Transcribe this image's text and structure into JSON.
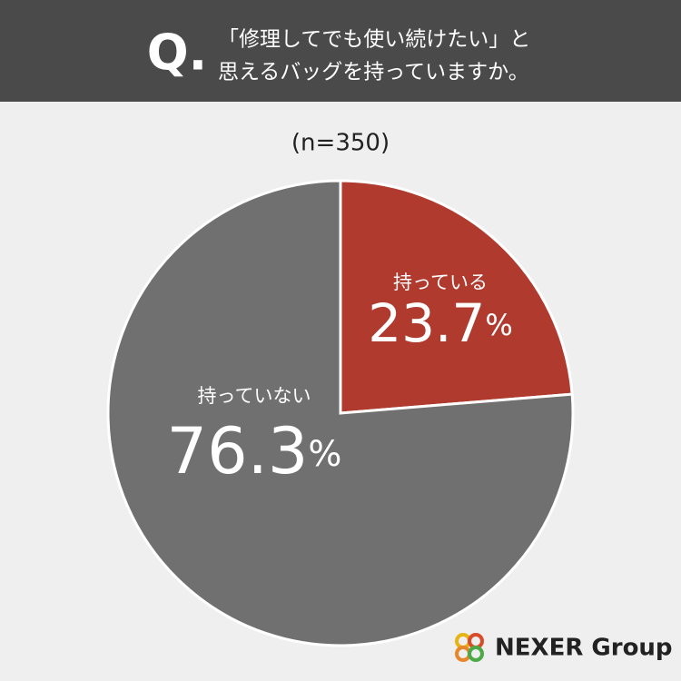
{
  "chart_data": {
    "type": "pie",
    "question_mark": "Q.",
    "title_lines": [
      "「修理してでも使い続けたい」と",
      "思えるバッグを持っていますか。"
    ],
    "subtitle": "(n=350)",
    "categories": [
      "持っている",
      "持っていない"
    ],
    "values": [
      23.7,
      76.3
    ],
    "value_labels": [
      "23.7%",
      "76.3%"
    ],
    "colors": [
      "#b03a2e",
      "#707070"
    ],
    "logo": "NEXER Group"
  }
}
